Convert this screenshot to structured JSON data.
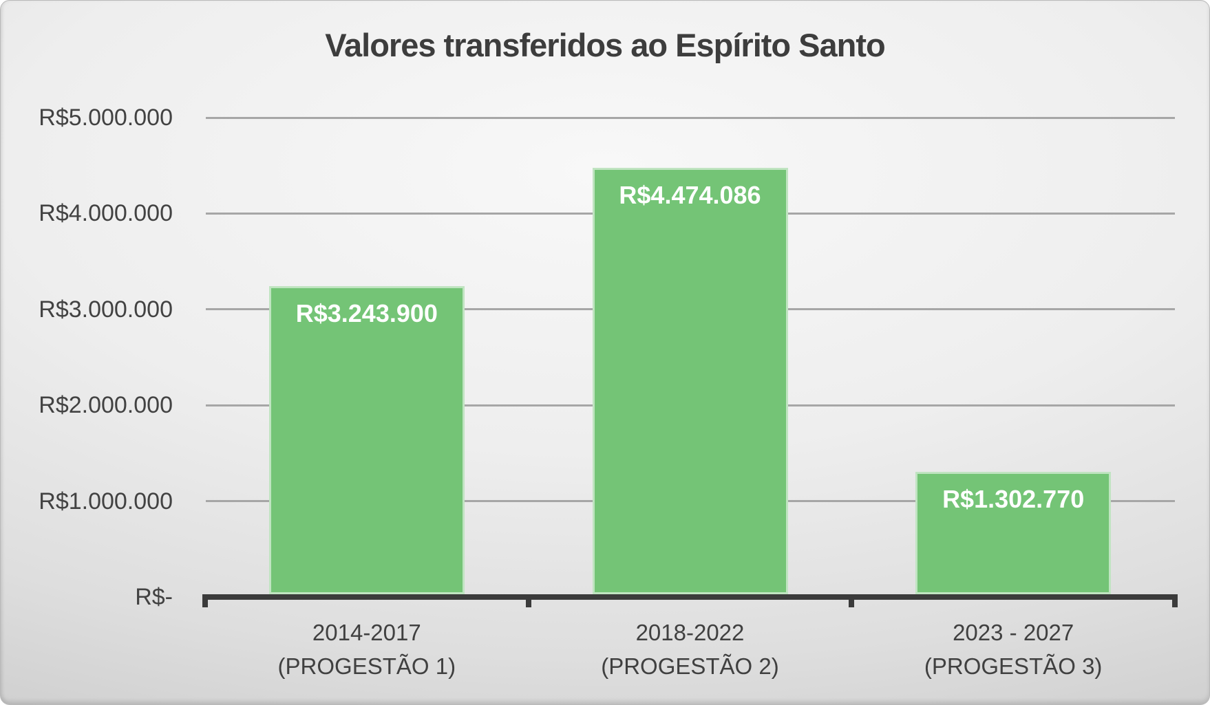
{
  "slide": {
    "title": "Valores transferidos ao Espírito Santo"
  },
  "chart_data": {
    "type": "bar",
    "title": "Valores transferidos ao Espírito Santo",
    "categories": [
      "2014-2017 (PROGESTÃO 1)",
      "2018-2022 (PROGESTÃO 2)",
      "2023 - 2027 (PROGESTÃO 3)"
    ],
    "category_lines": [
      [
        "2014-2017",
        "(PROGESTÃO 1)"
      ],
      [
        "2018-2022",
        "(PROGESTÃO 2)"
      ],
      [
        "2023 - 2027",
        "(PROGESTÃO 3)"
      ]
    ],
    "values": [
      3243900,
      4474086,
      1302770
    ],
    "data_labels": [
      "R$3.243.900",
      "R$4.474.086",
      "R$1.302.770"
    ],
    "xlabel": "",
    "ylabel": "",
    "ylim": [
      0,
      5000000
    ],
    "grid": true,
    "legend": false,
    "y_axis": {
      "ticks": [
        {
          "label": "R$5.000.000",
          "value": 5000000
        },
        {
          "label": "R$4.000.000",
          "value": 4000000
        },
        {
          "label": "R$3.000.000",
          "value": 3000000
        },
        {
          "label": "R$2.000.000",
          "value": 2000000
        },
        {
          "label": "R$1.000.000",
          "value": 1000000
        },
        {
          "label": "R$-",
          "value": 0
        }
      ]
    },
    "colors": {
      "bar": "#74c476",
      "data_label": "#ffffff",
      "gridline": "#a6a6a6",
      "axis_line": "#3b3b3b",
      "text": "#404040",
      "title": "#3d3d3d",
      "background_edge": "#c2c2c2",
      "background_center": "#f8f8f8"
    }
  }
}
